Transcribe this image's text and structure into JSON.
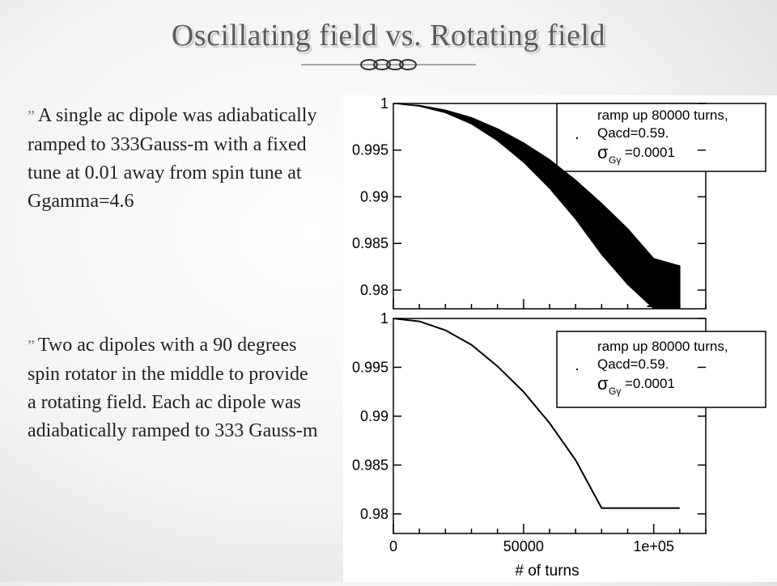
{
  "slide": {
    "title": "Oscillating field vs. Rotating field",
    "bullets": [
      {
        "glyph": "”",
        "text": "A single ac dipole was adiabatically ramped to 333Gauss-m with a fixed tune at 0.01 away from spin tune at Ggamma=4.6"
      },
      {
        "glyph": "”",
        "text": "Two ac dipoles with a 90 degrees spin rotator in the middle to provide a rotating field. Each ac dipole was adiabatically ramped to 333 Gauss-m"
      }
    ]
  },
  "chart_data": [
    {
      "type": "line",
      "panel": "top",
      "xlim": [
        0,
        120000
      ],
      "ylim": [
        0.978,
        1.0
      ],
      "yticks": [
        1,
        0.995,
        0.99,
        0.985,
        0.98
      ],
      "ytick_labels": [
        "1",
        "0.995",
        "0.99",
        "0.985",
        "0.98"
      ],
      "legend": [
        "ramp up 80000 turns,",
        "Qacd=0.59.",
        "σ",
        "Gγ",
        "=0.0001"
      ],
      "series": [
        {
          "role": "upper",
          "x": [
            0,
            10000,
            20000,
            30000,
            40000,
            50000,
            60000,
            70000,
            80000,
            90000,
            100000,
            110000
          ],
          "y": [
            1.0,
            0.9998,
            0.9993,
            0.9985,
            0.9973,
            0.9958,
            0.994,
            0.9918,
            0.9893,
            0.9866,
            0.9834,
            0.9826
          ]
        },
        {
          "role": "lower",
          "x": [
            0,
            10000,
            20000,
            30000,
            40000,
            50000,
            60000,
            70000,
            80000,
            90000,
            100000,
            110000
          ],
          "y": [
            1.0,
            0.9997,
            0.999,
            0.9978,
            0.996,
            0.9937,
            0.9909,
            0.9876,
            0.9838,
            0.9806,
            0.978,
            0.978
          ]
        }
      ]
    },
    {
      "type": "line",
      "panel": "bottom",
      "xlim": [
        0,
        120000
      ],
      "ylim": [
        0.978,
        1.0
      ],
      "yticks": [
        1,
        0.995,
        0.99,
        0.985,
        0.98
      ],
      "ytick_labels": [
        "1",
        "0.995",
        "0.99",
        "0.985",
        "0.98"
      ],
      "xticks": [
        0,
        50000,
        100000
      ],
      "xtick_labels": [
        "0",
        "50000",
        "1e+05"
      ],
      "xlabel": "# of turns",
      "legend": [
        "ramp up 80000 turns,",
        "Qacd=0.59.",
        "σ",
        "Gγ",
        "=0.0001"
      ],
      "series": [
        {
          "x": [
            0,
            10000,
            20000,
            30000,
            40000,
            50000,
            60000,
            70000,
            80000,
            90000,
            100000,
            110000
          ],
          "y": [
            1.0,
            0.9997,
            0.9988,
            0.9973,
            0.9951,
            0.9925,
            0.9893,
            0.9855,
            0.9806,
            0.9806,
            0.9806,
            0.9806
          ]
        }
      ]
    }
  ]
}
